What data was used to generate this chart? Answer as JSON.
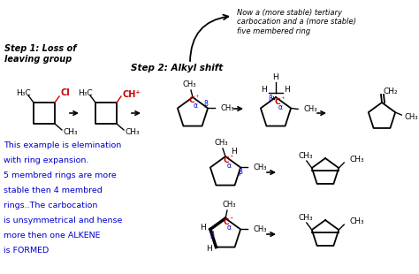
{
  "bg_color": "#ffffff",
  "title_note": "Now a (more stable) tertiary\ncarbocation and a (more stable)\nfive membered ring",
  "step1_text": "Step 1: Loss of\nleaving group",
  "step2_text": "Step 2: Alkyl shift",
  "explanation": "This example is elemination\nwith ring expansion.\n5 membred rings are more\nstable then 4 membred\nrings..The carbocation\nis unsymmetrical and hense\nmore then one ALKENE\nis FORMED",
  "text_color": "#000000",
  "red_color": "#cc0000",
  "blue_color": "#0000cc",
  "figsize": [
    4.74,
    3.1
  ],
  "dpi": 100
}
